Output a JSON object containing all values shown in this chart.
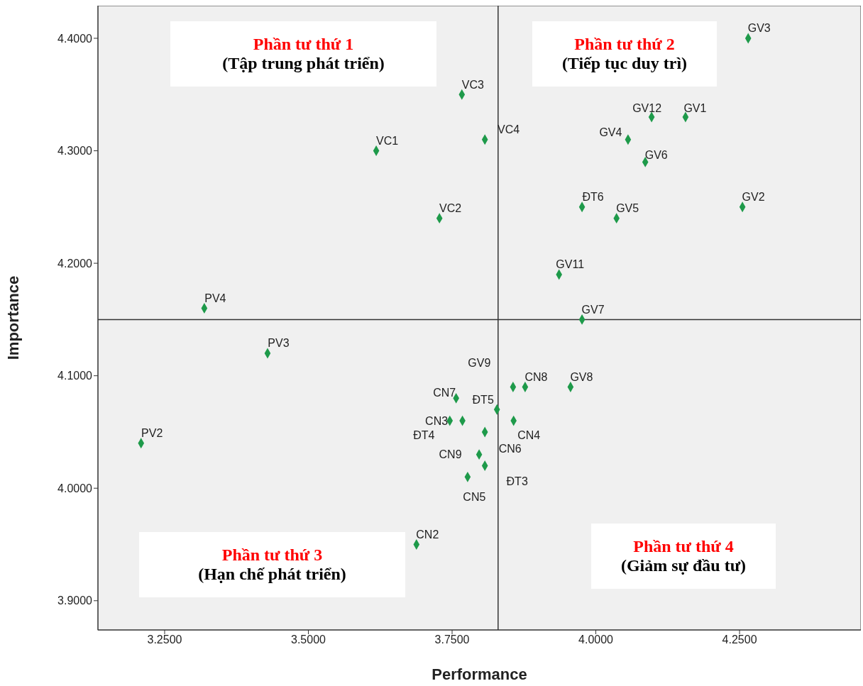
{
  "chart_data": {
    "type": "scatter",
    "xlabel": "Performance",
    "ylabel": "Importance",
    "xlim": [
      3.134,
      4.461
    ],
    "ylim": [
      3.874,
      4.429
    ],
    "xticks": [
      {
        "value": 3.25,
        "label": "3.2500"
      },
      {
        "value": 3.5,
        "label": "3.5000"
      },
      {
        "value": 3.75,
        "label": "3.7500"
      },
      {
        "value": 4.0,
        "label": "4.0000"
      },
      {
        "value": 4.25,
        "label": "4.2500"
      }
    ],
    "yticks": [
      {
        "value": 3.9,
        "label": "3.9000"
      },
      {
        "value": 4.0,
        "label": "4.0000"
      },
      {
        "value": 4.1,
        "label": "4.1000"
      },
      {
        "value": 4.2,
        "label": "4.2000"
      },
      {
        "value": 4.3,
        "label": "4.3000"
      },
      {
        "value": 4.4,
        "label": "4.4000"
      }
    ],
    "grid": false,
    "legend": false,
    "marker": "diamond",
    "series": [
      {
        "color": "#1e9a4a",
        "x": [
          4.265,
          4.156,
          4.097,
          4.056,
          4.086,
          4.255,
          3.976,
          4.036,
          3.936,
          3.976,
          3.956,
          3.877,
          3.856,
          3.828,
          3.857,
          3.807,
          3.757,
          3.768,
          3.746,
          3.797,
          3.807,
          3.777,
          3.688,
          3.767,
          3.807,
          3.618,
          3.728,
          3.319,
          3.429,
          3.209
        ],
        "values": [
          4.4,
          4.33,
          4.33,
          4.31,
          4.29,
          4.25,
          4.25,
          4.24,
          4.19,
          4.15,
          4.09,
          4.09,
          4.09,
          4.07,
          4.06,
          4.05,
          4.08,
          4.06,
          4.06,
          4.03,
          4.02,
          4.01,
          3.95,
          4.35,
          4.31,
          4.3,
          4.24,
          4.16,
          4.12,
          4.04
        ],
        "value_labels": [
          "GV3",
          "GV1",
          "GV12",
          "GV4",
          "GV6",
          "GV2",
          "ĐT6",
          "GV5",
          "GV11",
          "GV7",
          "GV8",
          "CN8",
          "GV9",
          "ĐT5",
          "CN4",
          "CN6",
          "CN7",
          "CN3",
          "ĐT4",
          "CN9",
          "ĐT3",
          "CN5",
          "CN2",
          "VC3",
          "VC4",
          "VC1",
          "VC2",
          "PV4",
          "PV3",
          "PV2"
        ]
      }
    ],
    "ref_lines": [
      {
        "axis": "x",
        "value": 3.83,
        "color": "#333333"
      },
      {
        "axis": "y",
        "value": 4.15,
        "color": "#333333"
      }
    ],
    "annotations": [
      "Phần tư thứ 1",
      "(Tập trung phát triển)",
      "Phần tư thứ 2",
      "(Tiếp tục duy trì)",
      "Phần tư thứ 3",
      "(Hạn chế phát triển)",
      "Phần tư thứ 4",
      "(Giảm sự đầu tư)"
    ]
  }
}
